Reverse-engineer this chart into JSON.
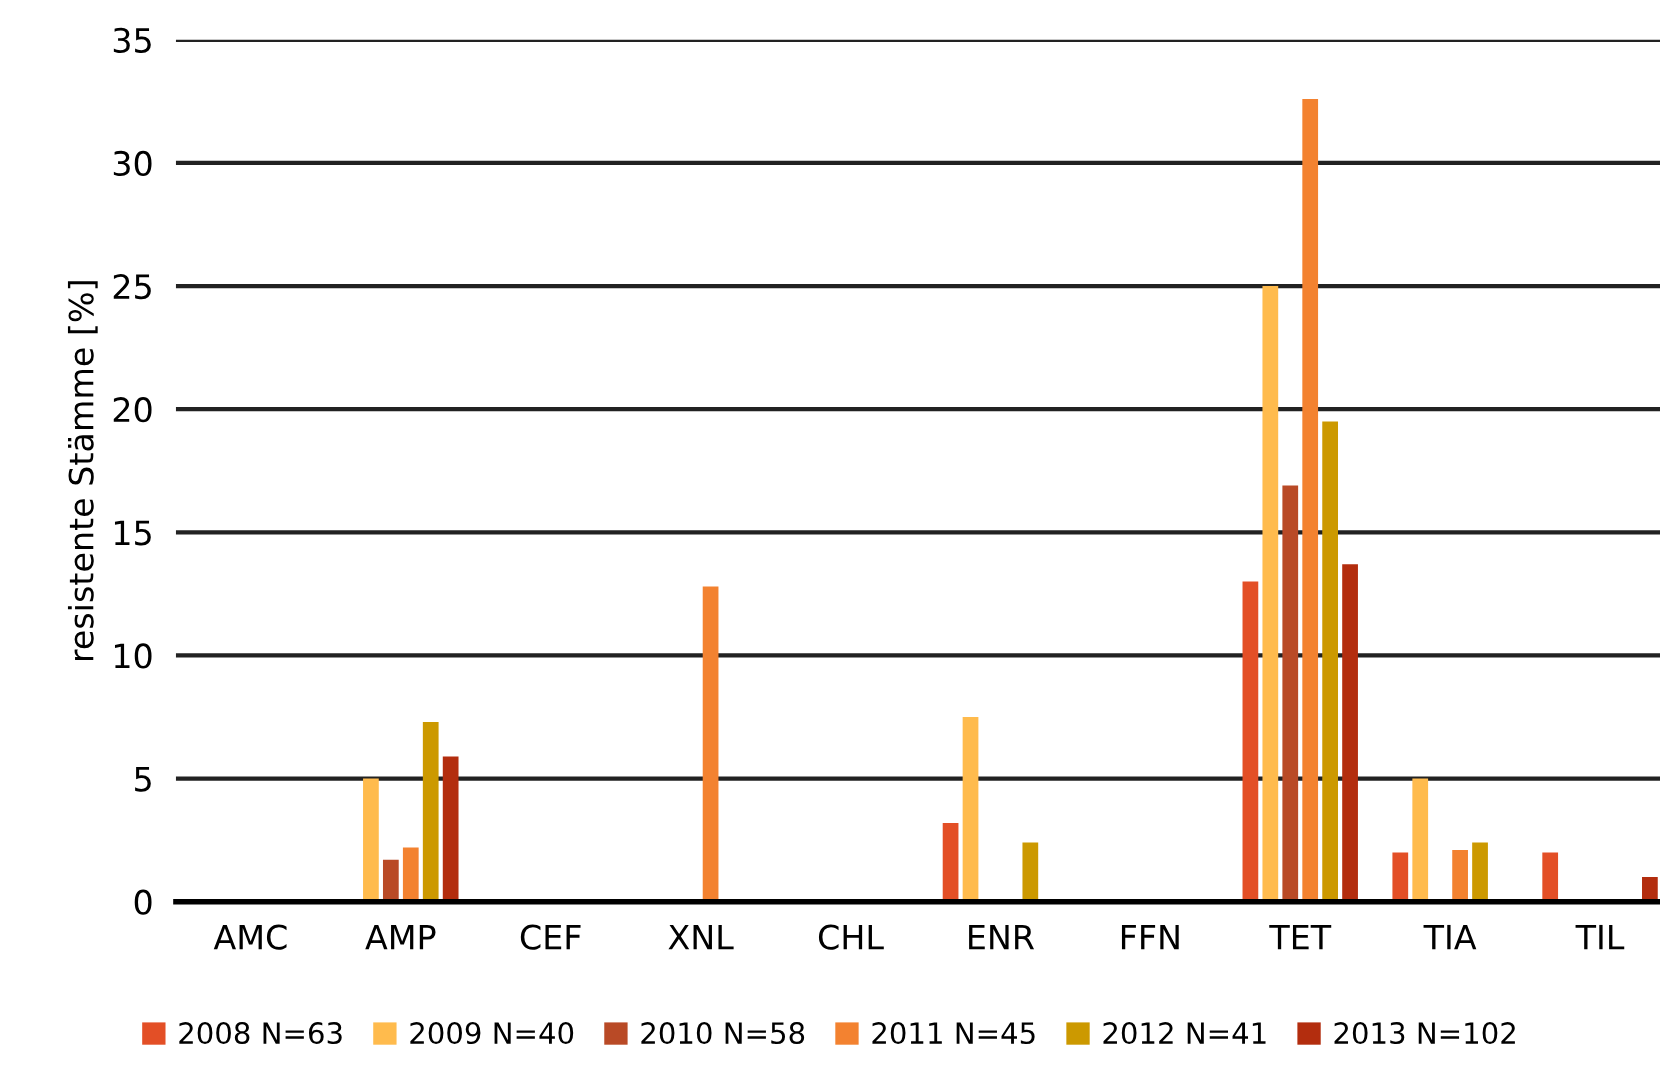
{
  "chart_data": {
    "type": "bar",
    "ylabel": "resistente Stämme [%]",
    "categories": [
      "AMC",
      "AMP",
      "CEF",
      "XNL",
      "CHL",
      "ENR",
      "FFN",
      "TET",
      "TIA",
      "TIL"
    ],
    "series": [
      {
        "name": "2008 N=63",
        "color": "#e34f26",
        "values": [
          0,
          0,
          0,
          0,
          0,
          3.2,
          0,
          13.0,
          2.0,
          2.0
        ]
      },
      {
        "name": "2009 N=40",
        "color": "#ffbb4d",
        "values": [
          0,
          5.0,
          0,
          0,
          0,
          7.5,
          0,
          25.0,
          5.0,
          0
        ]
      },
      {
        "name": "2010 N=58",
        "color": "#b94a26",
        "values": [
          0,
          1.7,
          0,
          0,
          0,
          0,
          0,
          16.9,
          0,
          0
        ]
      },
      {
        "name": "2011 N=45",
        "color": "#f38230",
        "values": [
          0,
          2.2,
          0,
          12.8,
          0,
          0,
          0,
          32.6,
          2.1,
          0
        ]
      },
      {
        "name": "2012 N=41",
        "color": "#cc9900",
        "values": [
          0,
          7.3,
          0,
          0,
          0,
          2.4,
          0,
          19.5,
          2.4,
          0
        ]
      },
      {
        "name": "2013 N=102",
        "color": "#b32d0e",
        "values": [
          0,
          5.9,
          0,
          0,
          0,
          0,
          0,
          13.7,
          0,
          1.0
        ]
      }
    ],
    "ylim": [
      0,
      35
    ],
    "yticks": [
      0,
      5,
      10,
      15,
      20,
      25,
      30,
      35
    ],
    "grid": "y",
    "legend": "bottom"
  }
}
